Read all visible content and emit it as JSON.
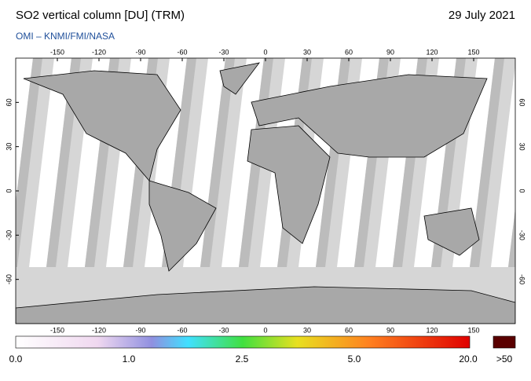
{
  "header": {
    "title": "SO2 vertical column [DU] (TRM)",
    "date": "29 July 2021",
    "credit": "OMI  –  KNMI/FMI/NASA"
  },
  "map": {
    "lon_ticks": [
      -150,
      -120,
      -90,
      -60,
      -30,
      0,
      30,
      60,
      90,
      120,
      150
    ],
    "lat_ticks": [
      60,
      30,
      0,
      -30,
      -60
    ],
    "lon_range": [
      -180,
      180
    ],
    "lat_range": [
      90,
      -90
    ]
  },
  "colorbar": {
    "labels": [
      "0.0",
      "1.0",
      "2.5",
      "5.0",
      "20.0",
      ">50"
    ]
  }
}
